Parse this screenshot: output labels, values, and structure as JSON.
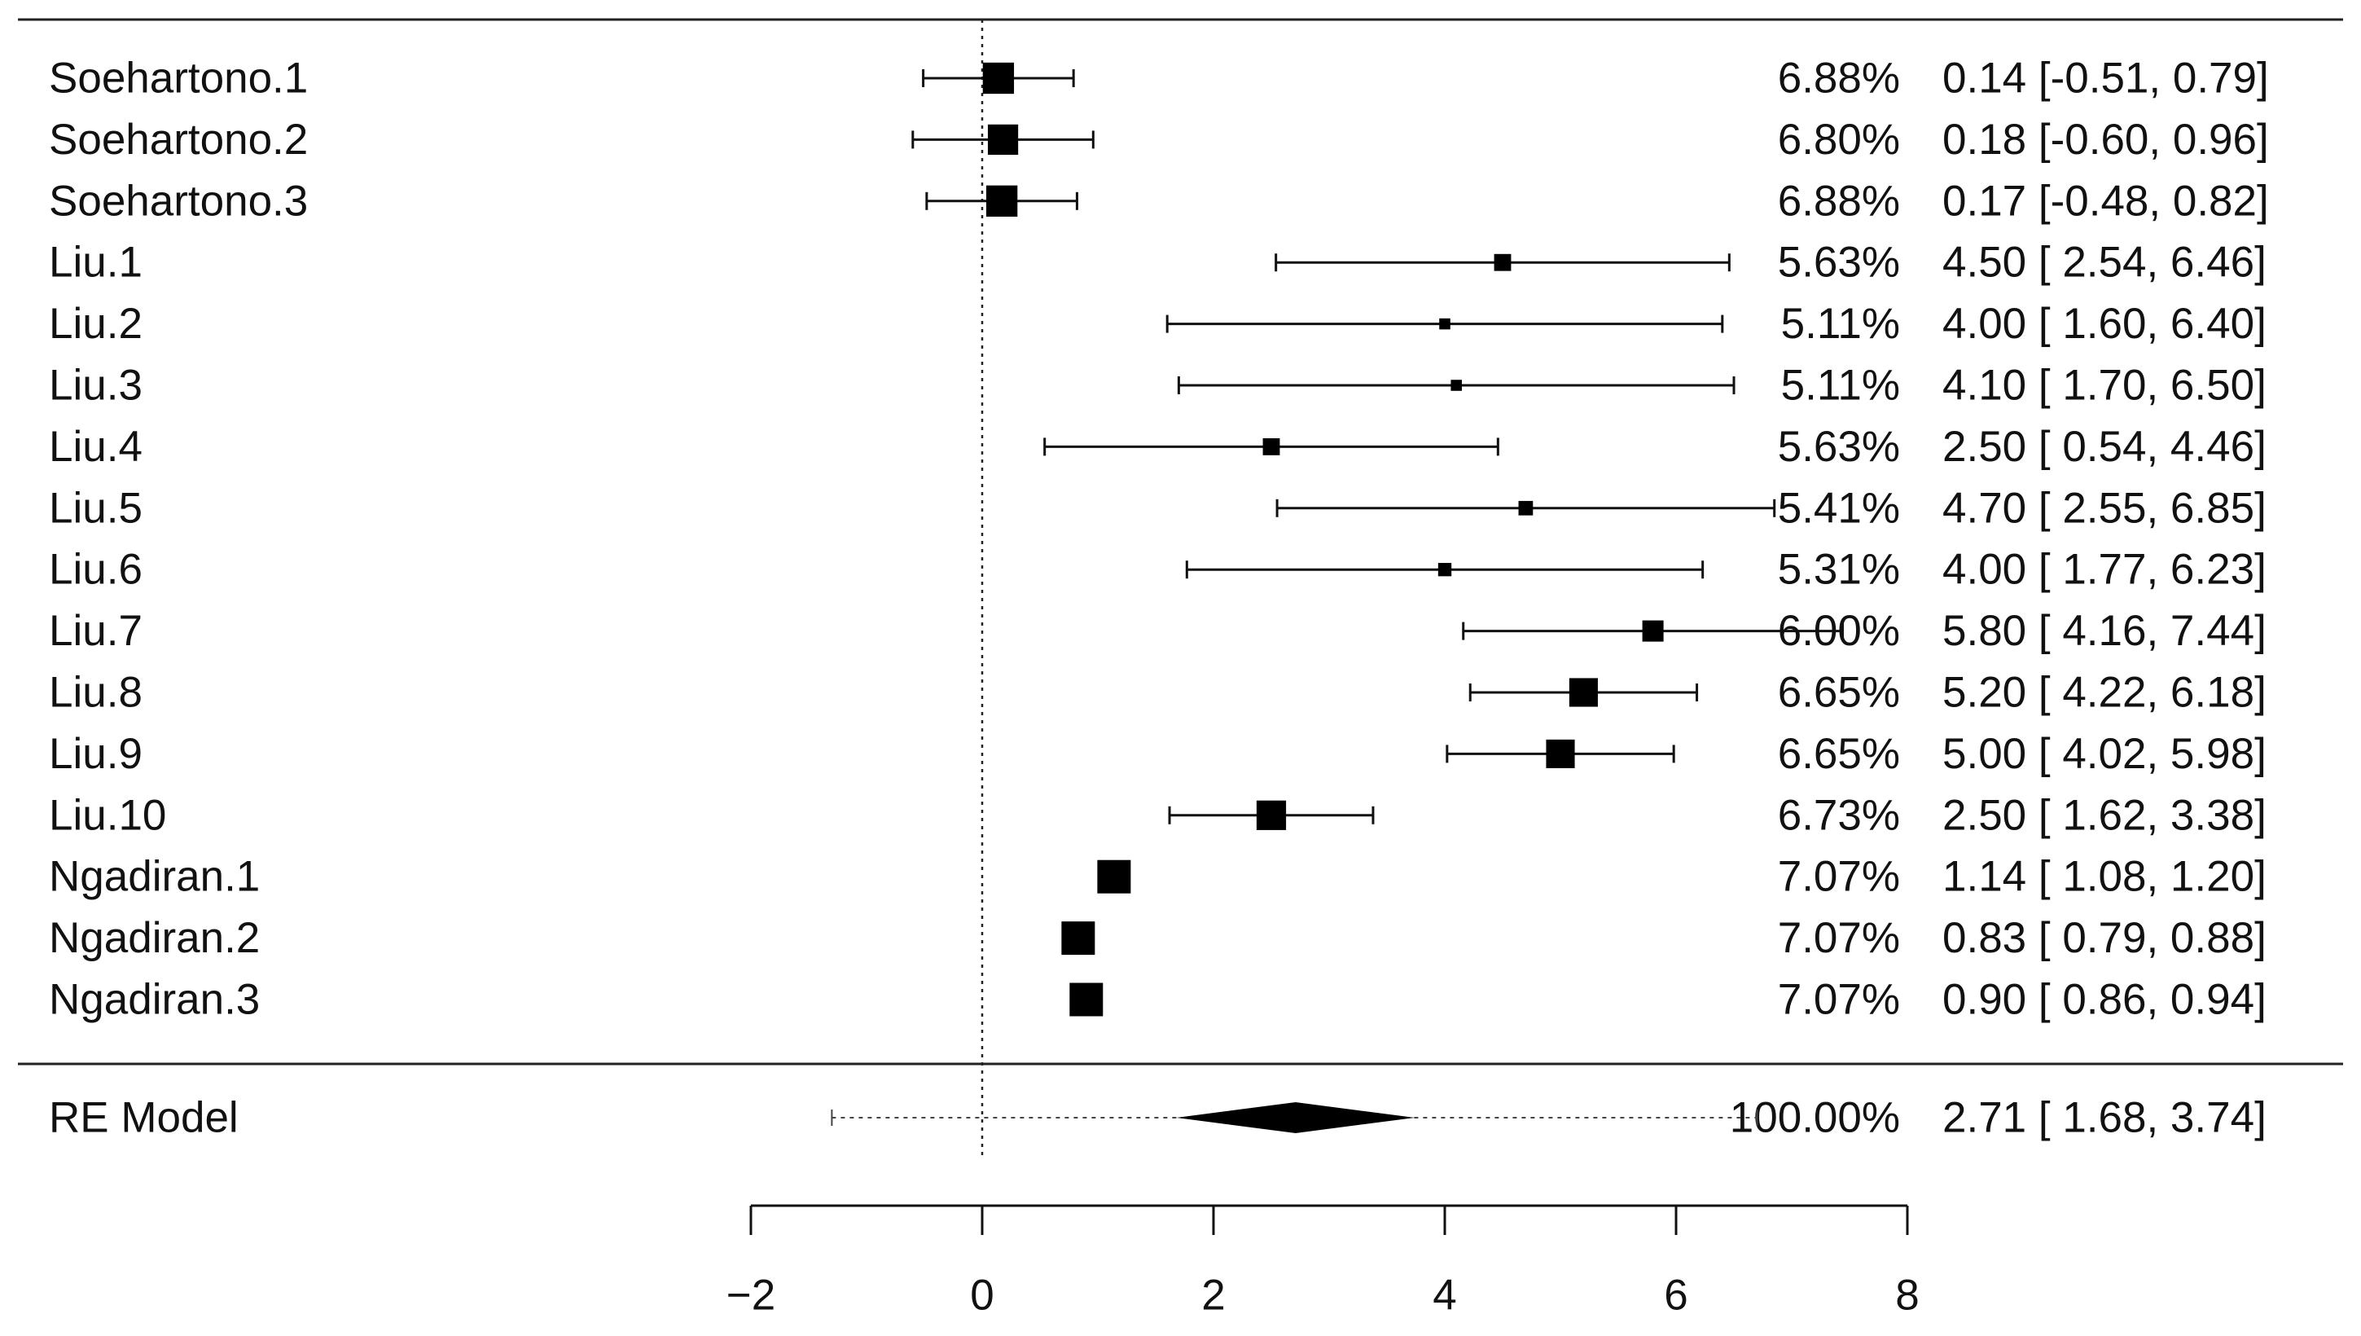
{
  "chart_data": {
    "type": "forest",
    "xlim": [
      -2,
      8
    ],
    "ticks": [
      -2,
      0,
      2,
      4,
      6,
      8
    ],
    "tick_labels": [
      "−2",
      "0",
      "2",
      "4",
      "6",
      "8"
    ],
    "reference_line": 0,
    "studies": [
      {
        "label": "Soehartono.1",
        "weight": "6.88%",
        "est": 0.14,
        "lo": -0.51,
        "hi": 0.79,
        "ci_text": "0.14 [-0.51, 0.79]"
      },
      {
        "label": "Soehartono.2",
        "weight": "6.80%",
        "est": 0.18,
        "lo": -0.6,
        "hi": 0.96,
        "ci_text": "0.18 [-0.60, 0.96]"
      },
      {
        "label": "Soehartono.3",
        "weight": "6.88%",
        "est": 0.17,
        "lo": -0.48,
        "hi": 0.82,
        "ci_text": "0.17 [-0.48, 0.82]"
      },
      {
        "label": "Liu.1",
        "weight": "5.63%",
        "est": 4.5,
        "lo": 2.54,
        "hi": 6.46,
        "ci_text": "4.50 [ 2.54, 6.46]"
      },
      {
        "label": "Liu.2",
        "weight": "5.11%",
        "est": 4.0,
        "lo": 1.6,
        "hi": 6.4,
        "ci_text": "4.00 [ 1.60, 6.40]"
      },
      {
        "label": "Liu.3",
        "weight": "5.11%",
        "est": 4.1,
        "lo": 1.7,
        "hi": 6.5,
        "ci_text": "4.10 [ 1.70, 6.50]"
      },
      {
        "label": "Liu.4",
        "weight": "5.63%",
        "est": 2.5,
        "lo": 0.54,
        "hi": 4.46,
        "ci_text": "2.50 [ 0.54, 4.46]"
      },
      {
        "label": "Liu.5",
        "weight": "5.41%",
        "est": 4.7,
        "lo": 2.55,
        "hi": 6.85,
        "ci_text": "4.70 [ 2.55, 6.85]"
      },
      {
        "label": "Liu.6",
        "weight": "5.31%",
        "est": 4.0,
        "lo": 1.77,
        "hi": 6.23,
        "ci_text": "4.00 [ 1.77, 6.23]"
      },
      {
        "label": "Liu.7",
        "weight": "6.00%",
        "est": 5.8,
        "lo": 4.16,
        "hi": 7.44,
        "ci_text": "5.80 [ 4.16, 7.44]"
      },
      {
        "label": "Liu.8",
        "weight": "6.65%",
        "est": 5.2,
        "lo": 4.22,
        "hi": 6.18,
        "ci_text": "5.20 [ 4.22, 6.18]"
      },
      {
        "label": "Liu.9",
        "weight": "6.65%",
        "est": 5.0,
        "lo": 4.02,
        "hi": 5.98,
        "ci_text": "5.00 [ 4.02, 5.98]"
      },
      {
        "label": "Liu.10",
        "weight": "6.73%",
        "est": 2.5,
        "lo": 1.62,
        "hi": 3.38,
        "ci_text": "2.50 [ 1.62, 3.38]"
      },
      {
        "label": "Ngadiran.1",
        "weight": "7.07%",
        "est": 1.14,
        "lo": 1.08,
        "hi": 1.2,
        "ci_text": "1.14 [ 1.08, 1.20]"
      },
      {
        "label": "Ngadiran.2",
        "weight": "7.07%",
        "est": 0.83,
        "lo": 0.79,
        "hi": 0.88,
        "ci_text": "0.83 [ 0.79, 0.88]"
      },
      {
        "label": "Ngadiran.3",
        "weight": "7.07%",
        "est": 0.9,
        "lo": 0.86,
        "hi": 0.94,
        "ci_text": "0.90 [ 0.86, 0.94]"
      }
    ],
    "summary": {
      "label": "RE Model",
      "weight": "100.00%",
      "est": 2.71,
      "lo": 1.68,
      "hi": 3.74,
      "pi_lo": -1.3,
      "pi_hi": 6.7,
      "ci_text": "2.71 [ 1.68, 3.74]"
    }
  }
}
